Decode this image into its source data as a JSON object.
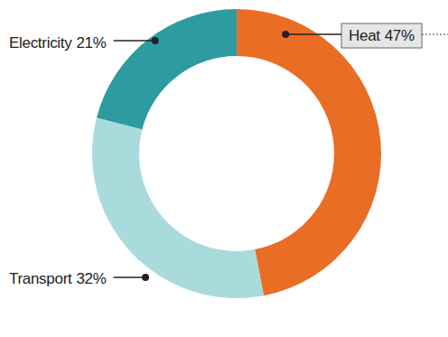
{
  "chart_data": {
    "type": "donut",
    "categories": [
      "Heat",
      "Transport",
      "Electricity"
    ],
    "values": [
      47,
      32,
      21
    ],
    "value_labels": [
      "47%",
      "32%",
      "21%"
    ],
    "colors": [
      "#e96d25",
      "#aadbdc",
      "#2e9ba0"
    ],
    "data_labels": true
  }
}
